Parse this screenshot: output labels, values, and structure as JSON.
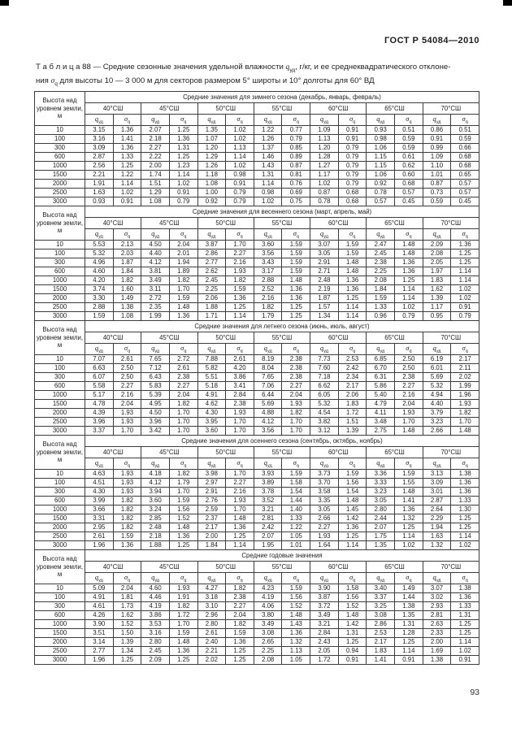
{
  "page": {
    "doc_code": "ГОСТ Р 54084—2010",
    "page_number": "93"
  },
  "title": {
    "line1_a": "Т а б л и ц а 88 — Средние сезонные значения удельной влажности ",
    "q_sym": "q",
    "q_sub": "уд",
    "line1_b": ", г/кг, и ее среднеквадратического отклоне-",
    "line2_a": "ния ",
    "sigma_sym": "σ",
    "sigma_sub": "q",
    "line2_b": " для высоты 10 — 3 000 м для секторов размером 5° широты и 10° долготы для 60°  ВД"
  },
  "table": {
    "height_col_header": "Высота над уровнем земли, м",
    "latitudes": [
      "40°СШ",
      "45°СШ",
      "50°СШ",
      "55°СШ",
      "60°СШ",
      "65°СШ",
      "70°СШ"
    ],
    "q_symbol": "q",
    "q_subscript": "уд",
    "sigma_symbol": "σ",
    "sigma_subscript": "q",
    "sections": [
      {
        "caption": "Средние значения для зимнего сезона (декабрь, январь, февраль)",
        "rows": [
          [
            "10",
            "3.15",
            "1.36",
            "2.07",
            "1.25",
            "1.35",
            "1.02",
            "1.22",
            "0.77",
            "1.09",
            "0.91",
            "0.93",
            "0.51",
            "0.86",
            "0.51"
          ],
          [
            "100",
            "3.16",
            "1.41",
            "2.18",
            "1.36",
            "1.07",
            "1.02",
            "1.26",
            "0.79",
            "1.13",
            "0.91",
            "0.98",
            "0.59",
            "0.91",
            "0.59"
          ],
          [
            "300",
            "3.09",
            "1.36",
            "2.27",
            "1.31",
            "1.20",
            "1.13",
            "1.37",
            "0.85",
            "1.20",
            "0.79",
            "1.06",
            "0.59",
            "0.99",
            "0.66"
          ],
          [
            "600",
            "2.87",
            "1.33",
            "2.22",
            "1.25",
            "1.29",
            "1.14",
            "1.46",
            "0.89",
            "1.28",
            "0.79",
            "1.15",
            "0.61",
            "1.09",
            "0.68"
          ],
          [
            "1000",
            "2.56",
            "1.25",
            "2.00",
            "1.23",
            "1.26",
            "1.02",
            "1.43",
            "0.87",
            "1.27",
            "0.79",
            "1.15",
            "0.62",
            "1.10",
            "0.68"
          ],
          [
            "1500",
            "2.21",
            "1.22",
            "1.74",
            "1.14",
            "1.18",
            "0.98",
            "1.31",
            "0.81",
            "1.17",
            "0.79",
            "1.06",
            "0.60",
            "1.01",
            "0.65"
          ],
          [
            "2000",
            "1.91",
            "1.14",
            "1.51",
            "1.02",
            "1.08",
            "0.91",
            "1.14",
            "0.76",
            "1.02",
            "0.79",
            "0.92",
            "0.68",
            "0.87",
            "0.57"
          ],
          [
            "2500",
            "1.63",
            "1.02",
            "1.29",
            "0.91",
            "1.00",
            "0.79",
            "0.98",
            "0.69",
            "0.87",
            "0.68",
            "0.78",
            "0.57",
            "0.73",
            "0.57"
          ],
          [
            "3000",
            "0.93",
            "0.91",
            "1.08",
            "0.79",
            "0.92",
            "0.79",
            "1.02",
            "0.75",
            "0.78",
            "0.68",
            "0.57",
            "0.45",
            "0.59",
            "0.45"
          ]
        ]
      },
      {
        "caption": "Средние значения для весеннего сезона (март, апрель, май)",
        "rows": [
          [
            "10",
            "5.53",
            "2.13",
            "4.50",
            "2.04",
            "3.87",
            "1.70",
            "3.60",
            "1.59",
            "3.07",
            "1.59",
            "2.47",
            "1.48",
            "2.09",
            "1.36"
          ],
          [
            "100",
            "5.32",
            "2.03",
            "4.40",
            "2.01",
            "2.86",
            "2.27",
            "3.56",
            "1.59",
            "3.05",
            "1.59",
            "2.45",
            "1.48",
            "2.08",
            "1.25"
          ],
          [
            "300",
            "4.96",
            "1.87",
            "4.12",
            "1.94",
            "2.77",
            "2.16",
            "3.43",
            "1.59",
            "2.91",
            "1.48",
            "2.38",
            "1.36",
            "2.05",
            "1.25"
          ],
          [
            "600",
            "4.60",
            "1.84",
            "3.81",
            "1.89",
            "2.62",
            "1.93",
            "3.17",
            "1.59",
            "2.71",
            "1.48",
            "2.25",
            "1.36",
            "1.97",
            "1.14"
          ],
          [
            "1000",
            "4.20",
            "1.82",
            "3.49",
            "1.82",
            "2.45",
            "1.82",
            "2.88",
            "1.48",
            "2.48",
            "1.36",
            "2.08",
            "1.25",
            "1.83",
            "1.14"
          ],
          [
            "1500",
            "3.74",
            "1.60",
            "3.11",
            "1.70",
            "2.25",
            "1.59",
            "2.52",
            "1.36",
            "2.19",
            "1.36",
            "1.84",
            "1.14",
            "1.62",
            "1.02"
          ],
          [
            "2000",
            "3.30",
            "1.49",
            "2.72",
            "1.59",
            "2.06",
            "1.36",
            "2.16",
            "1.36",
            "1.87",
            "1.25",
            "1.59",
            "1.14",
            "1.39",
            "1.02"
          ],
          [
            "2500",
            "2.88",
            "1.38",
            "2.35",
            "1.48",
            "1.88",
            "1.25",
            "1.82",
            "1.25",
            "1.57",
            "1.14",
            "1.33",
            "1.02",
            "1.17",
            "0.91"
          ],
          [
            "3000",
            "1.59",
            "1.08",
            "1.99",
            "1.36",
            "1.71",
            "1.14",
            "1.79",
            "1.25",
            "1.34",
            "1.14",
            "0.96",
            "0.79",
            "0.95",
            "0.79"
          ]
        ]
      },
      {
        "caption": "Средние значения для летнего сезона (июнь, июль, август)",
        "rows": [
          [
            "10",
            "7.07",
            "2.61",
            "7.65",
            "2.72",
            "7.88",
            "2.61",
            "8.19",
            "2.38",
            "7.73",
            "2.53",
            "6.85",
            "2.50",
            "6.19",
            "2.17"
          ],
          [
            "100",
            "6.63",
            "2.50",
            "7.12",
            "2.61",
            "5.82",
            "4.20",
            "8.04",
            "2.38",
            "7.60",
            "2.42",
            "6.70",
            "2.50",
            "6.01",
            "2.11"
          ],
          [
            "300",
            "6.07",
            "2.50",
            "6.43",
            "2.38",
            "5.51",
            "3.86",
            "7.65",
            "2.38",
            "7.18",
            "2.34",
            "6.31",
            "2.38",
            "5.69",
            "2.02"
          ],
          [
            "600",
            "5.58",
            "2.27",
            "5.83",
            "2.27",
            "5.18",
            "3.41",
            "7.06",
            "2.27",
            "6.62",
            "2.17",
            "5.86",
            "2.27",
            "5.32",
            "1.99"
          ],
          [
            "1000",
            "5.17",
            "2.16",
            "5.39",
            "2.04",
            "4.91",
            "2.84",
            "6.44",
            "2.04",
            "6.05",
            "2.06",
            "5.40",
            "2.16",
            "4.94",
            "1.96"
          ],
          [
            "1500",
            "4.78",
            "2.04",
            "4.95",
            "1.82",
            "4.62",
            "2.38",
            "5.69",
            "1.93",
            "5.32",
            "1.83",
            "4.79",
            "2.04",
            "4.40",
            "1.93"
          ],
          [
            "2000",
            "4.39",
            "1.93",
            "4.50",
            "1.70",
            "4.30",
            "1.93",
            "4.88",
            "1.82",
            "4.54",
            "1.72",
            "4.11",
            "1.93",
            "3.79",
            "1.82"
          ],
          [
            "2500",
            "3.96",
            "1.93",
            "3.96",
            "1.70",
            "3.95",
            "1.70",
            "4.12",
            "1.70",
            "3.82",
            "1.51",
            "3.48",
            "1.70",
            "3.23",
            "1.70"
          ],
          [
            "3000",
            "3.37",
            "1.70",
            "3.42",
            "1.70",
            "3.60",
            "1.70",
            "3.56",
            "1.70",
            "3.12",
            "1.39",
            "2.75",
            "1.48",
            "2.66",
            "1.48"
          ]
        ]
      },
      {
        "caption": "Средние значения для осеннего сезона (сентябрь, октябрь, ноябрь)",
        "rows": [
          [
            "10",
            "4.63",
            "1.93",
            "4.18",
            "1.82",
            "3.98",
            "1.70",
            "3.93",
            "1.59",
            "3.73",
            "1.59",
            "3.36",
            "1.59",
            "3.13",
            "1.38"
          ],
          [
            "100",
            "4.51",
            "1.93",
            "4.12",
            "1.79",
            "2.97",
            "2.27",
            "3.89",
            "1.58",
            "3.70",
            "1.56",
            "3.33",
            "1.55",
            "3.09",
            "1.36"
          ],
          [
            "300",
            "4.30",
            "1.93",
            "3.94",
            "1.70",
            "2.91",
            "2.16",
            "3.78",
            "1.54",
            "3.58",
            "1.54",
            "3.23",
            "1.48",
            "3.01",
            "1.36"
          ],
          [
            "600",
            "3.99",
            "1.82",
            "3.60",
            "1.59",
            "2.76",
            "1.93",
            "3.52",
            "1.44",
            "3.35",
            "1.48",
            "3.05",
            "1.41",
            "2.87",
            "1.33"
          ],
          [
            "1000",
            "3.66",
            "1.82",
            "3.24",
            "1.56",
            "2.59",
            "1.70",
            "3.21",
            "1.40",
            "3.05",
            "1.45",
            "2.80",
            "1.36",
            "2.64",
            "1.30"
          ],
          [
            "1500",
            "3.31",
            "1.82",
            "2.85",
            "1.52",
            "2.37",
            "1.48",
            "2.81",
            "1.33",
            "2.66",
            "1.42",
            "2.44",
            "1.32",
            "2.29",
            "1.25"
          ],
          [
            "2000",
            "2.95",
            "1.82",
            "2.48",
            "1.48",
            "2.17",
            "1.36",
            "2.42",
            "1.22",
            "2.27",
            "1.36",
            "2.07",
            "1.25",
            "1.94",
            "1.25"
          ],
          [
            "2500",
            "2.61",
            "1.59",
            "2.18",
            "1.36",
            "2.00",
            "1.25",
            "2.07",
            "1.05",
            "1.93",
            "1.25",
            "1.75",
            "1.14",
            "1.63",
            "1.14"
          ],
          [
            "3000",
            "1.96",
            "1.36",
            "1.88",
            "1.25",
            "1.84",
            "1.14",
            "1.95",
            "1.01",
            "1.64",
            "1.14",
            "1.35",
            "1.02",
            "1.32",
            "1.02"
          ]
        ]
      },
      {
        "caption": "Средние годовые значения",
        "rows": [
          [
            "10",
            "5.09",
            "2.04",
            "4.60",
            "1.93",
            "4.27",
            "1.82",
            "4.23",
            "1.59",
            "3.90",
            "1.58",
            "3.40",
            "1.49",
            "3.07",
            "1.38"
          ],
          [
            "100",
            "4.91",
            "1.81",
            "4.46",
            "1.91",
            "3.18",
            "2.38",
            "4.19",
            "1.56",
            "3.87",
            "1.56",
            "3.37",
            "1.44",
            "3.02",
            "1.36"
          ],
          [
            "300",
            "4.61",
            "1.73",
            "4.19",
            "1.82",
            "3.10",
            "2.27",
            "4.06",
            "1.52",
            "3.72",
            "1.52",
            "3.25",
            "1.38",
            "2.93",
            "1.33"
          ],
          [
            "600",
            "4.26",
            "1.62",
            "3.86",
            "1.72",
            "2.96",
            "2.04",
            "3.80",
            "1.48",
            "3.49",
            "1.48",
            "3.08",
            "1.35",
            "2.81",
            "1.31"
          ],
          [
            "1000",
            "3.90",
            "1.52",
            "3.53",
            "1.70",
            "2.80",
            "1.82",
            "3.49",
            "1.43",
            "3.21",
            "1.42",
            "2.86",
            "1.31",
            "2.63",
            "1.25"
          ],
          [
            "1500",
            "3.51",
            "1.50",
            "3.16",
            "1.59",
            "2.61",
            "1.59",
            "3.08",
            "1.36",
            "2.84",
            "1.31",
            "2.53",
            "1.28",
            "2.33",
            "1.25"
          ],
          [
            "2000",
            "3.14",
            "1.39",
            "2.80",
            "1.48",
            "2.40",
            "1.36",
            "2.65",
            "1.32",
            "2.43",
            "1.25",
            "2.17",
            "1.25",
            "2.00",
            "1.14"
          ],
          [
            "2500",
            "2.77",
            "1.34",
            "2.45",
            "1.36",
            "2.21",
            "1.25",
            "2.25",
            "1.13",
            "2.05",
            "0.94",
            "1.83",
            "1.14",
            "1.69",
            "1.02"
          ],
          [
            "3000",
            "1.96",
            "1.25",
            "2.09",
            "1.25",
            "2.02",
            "1.25",
            "2.08",
            "1.05",
            "1.72",
            "0.91",
            "1.41",
            "0.91",
            "1.38",
            "0.91"
          ]
        ]
      }
    ]
  }
}
